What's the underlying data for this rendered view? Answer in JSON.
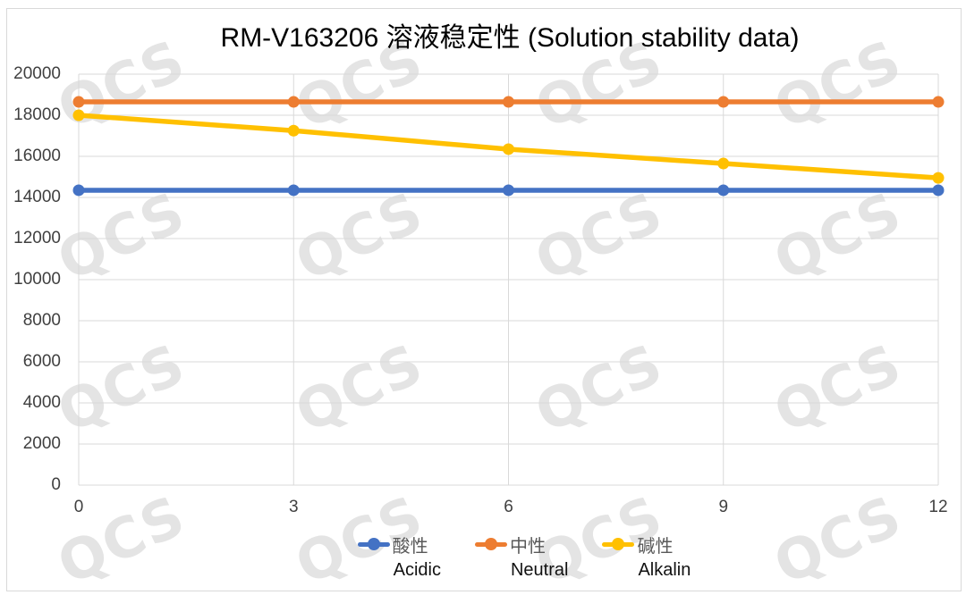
{
  "title": "RM-V163206 溶液稳定性 (Solution stability data)",
  "watermark": {
    "text": "QCS"
  },
  "colors": {
    "series_acidic": "#4472C4",
    "series_neutral": "#ED7D31",
    "series_alkalin": "#FFC000",
    "gridline": "#d9d9d9",
    "border": "#d9d9d9",
    "tick_text": "#404040",
    "legend_cn_text": "#595959",
    "legend_en_text": "#111111",
    "title_text": "#000000",
    "watermark_text": "#e4e4e4"
  },
  "chart_data": {
    "type": "line",
    "title": "RM-V163206 溶液稳定性 (Solution stability data)",
    "x": [
      0,
      3,
      6,
      9,
      12
    ],
    "x_labels": [
      "0",
      "3",
      "6",
      "9",
      "12"
    ],
    "xlabel": "",
    "ylabel": "",
    "ylim": [
      0,
      20000
    ],
    "ytick_step": 2000,
    "ytick_labels": [
      "0",
      "2000",
      "4000",
      "6000",
      "8000",
      "10000",
      "12000",
      "14000",
      "16000",
      "18000",
      "20000"
    ],
    "grid": true,
    "legend_position": "bottom",
    "marker": "circle",
    "series": [
      {
        "name_cn": "酸性",
        "name_en": "Acidic",
        "color": "#4472C4",
        "values": [
          14350,
          14350,
          14350,
          14350,
          14350
        ]
      },
      {
        "name_cn": "中性",
        "name_en": "Neutral",
        "color": "#ED7D31",
        "values": [
          18650,
          18650,
          18650,
          18650,
          18650
        ]
      },
      {
        "name_cn": "碱性",
        "name_en": "Alkalin",
        "color": "#FFC000",
        "values": [
          18000,
          17250,
          16350,
          15650,
          14950
        ]
      }
    ]
  }
}
